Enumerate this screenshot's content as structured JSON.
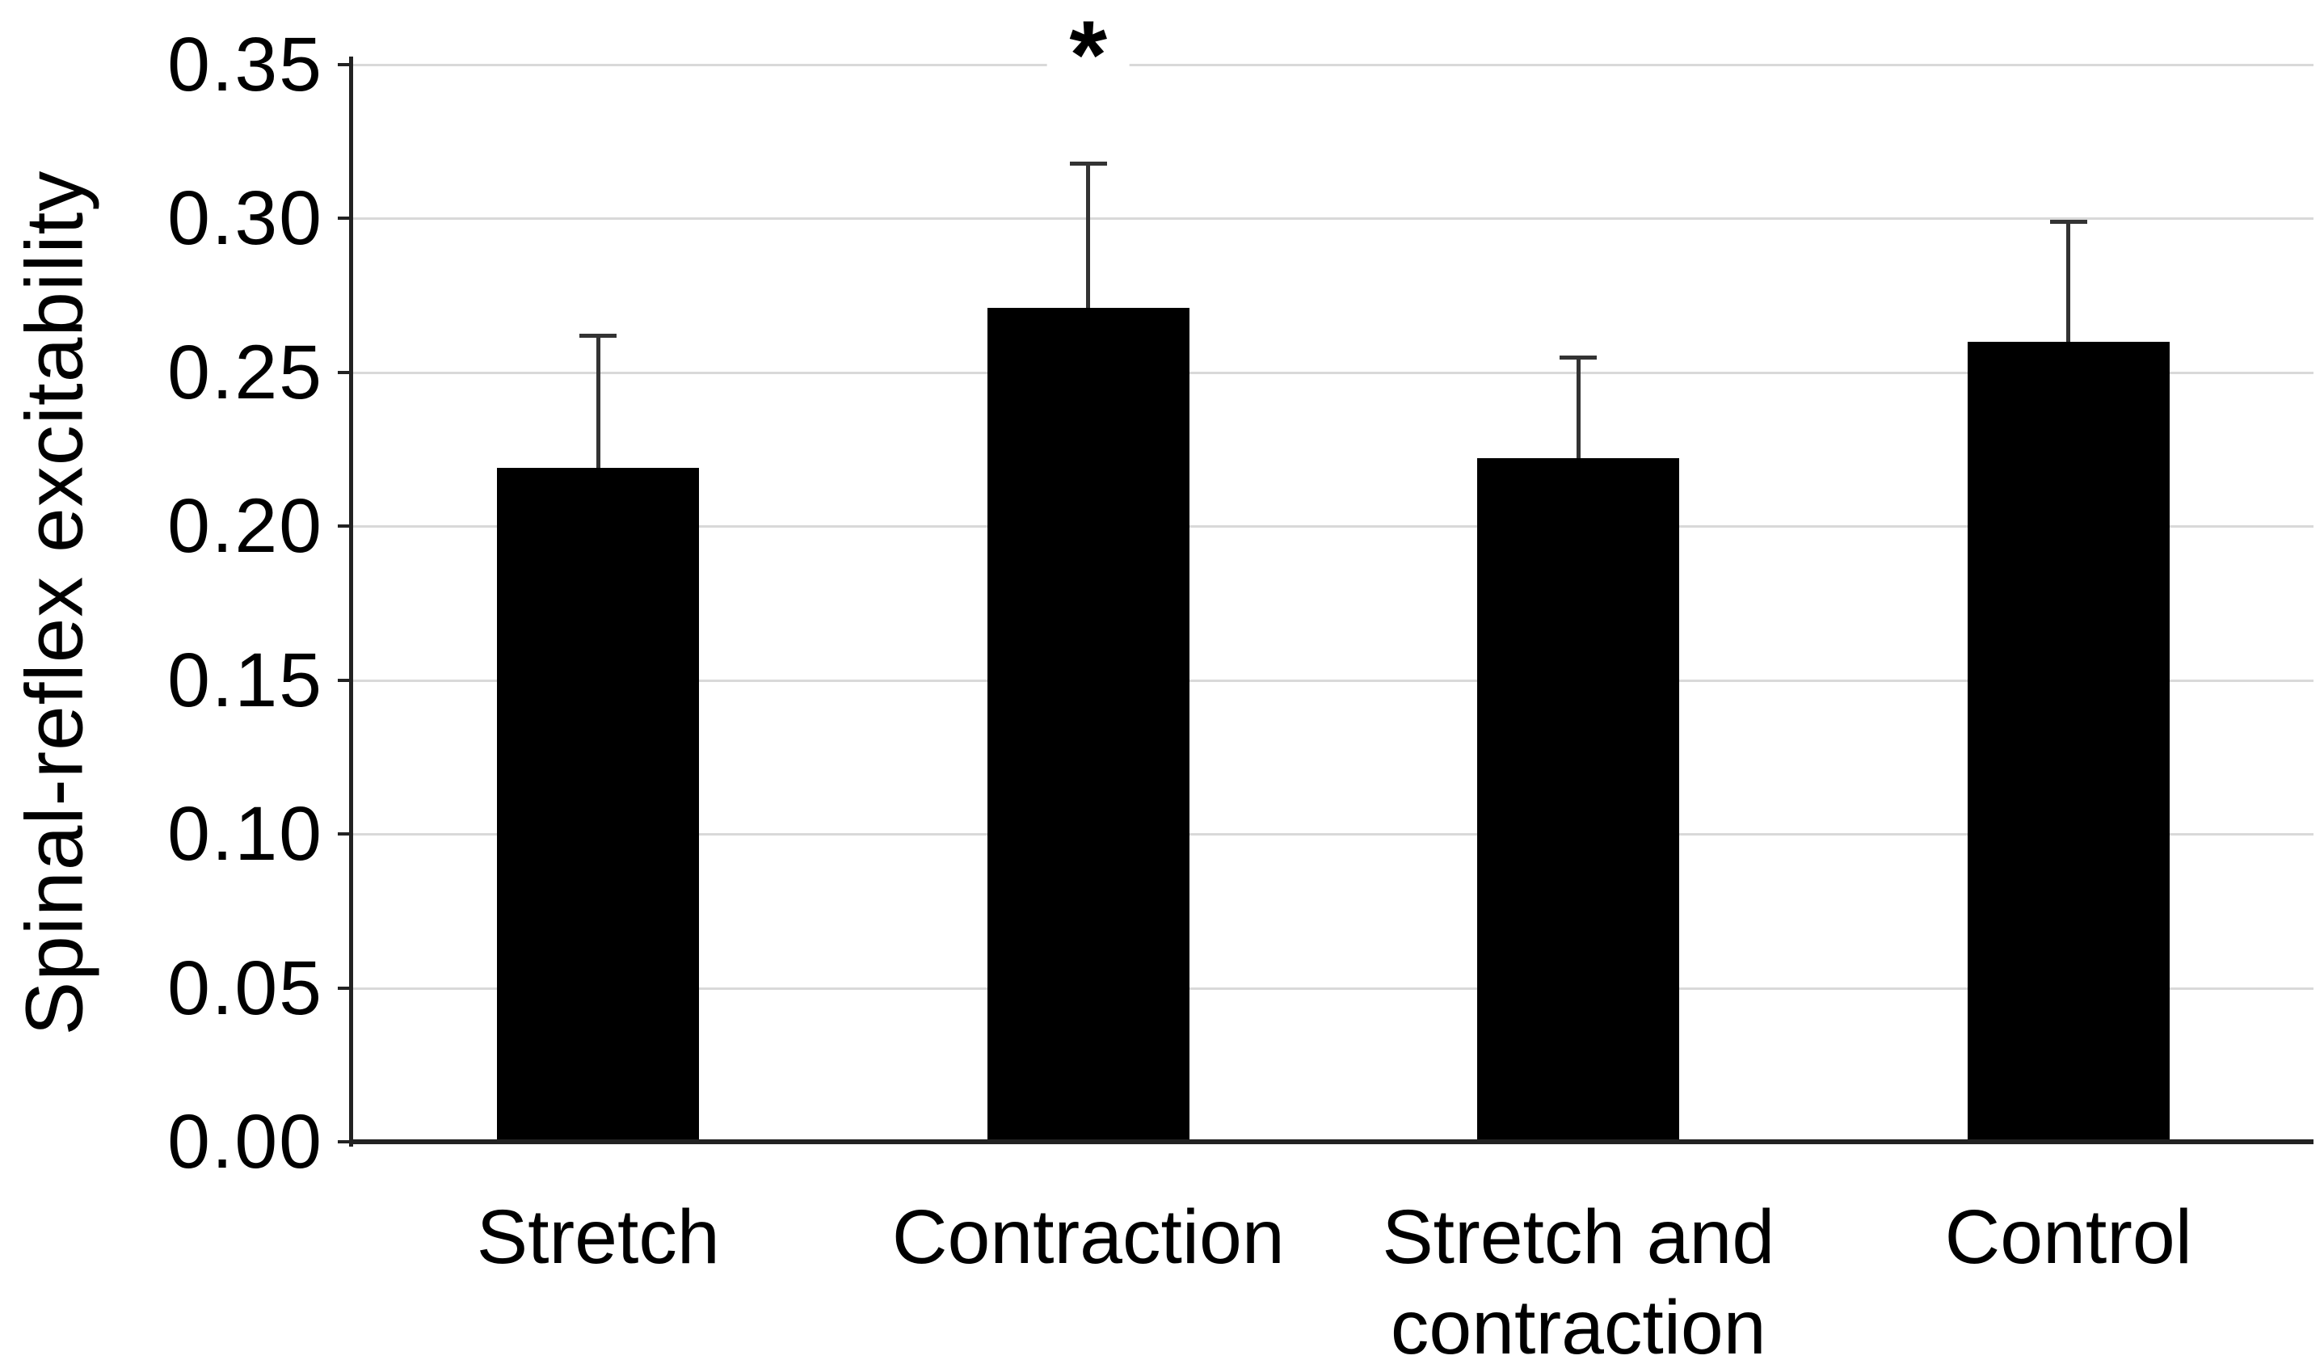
{
  "chart_data": {
    "type": "bar",
    "title": "",
    "xlabel": "",
    "ylabel": "Spinal-reflex excitability",
    "categories": [
      "Stretch",
      "Contraction",
      "Stretch and contraction",
      "Control"
    ],
    "category_lines": [
      [
        "Stretch"
      ],
      [
        "Contraction"
      ],
      [
        "Stretch and",
        "contraction"
      ],
      [
        "Control"
      ]
    ],
    "values": [
      0.219,
      0.271,
      0.222,
      0.26
    ],
    "errors_plus": [
      0.043,
      0.047,
      0.033,
      0.039
    ],
    "ylim": [
      0,
      0.35
    ],
    "ytick_labels": [
      "0.00",
      "0.05",
      "0.10",
      "0.15",
      "0.20",
      "0.25",
      "0.30",
      "0.35"
    ],
    "grid": true,
    "legend": "none",
    "annotations": [
      {
        "category_index": 1,
        "symbol": "*",
        "meaning": "significance-marker"
      }
    ],
    "colors": {
      "bar": "#000000",
      "gridline": "#d9d9d9",
      "axis": "#222222",
      "error_bar": "#333333",
      "text": "#000000",
      "background": "#ffffff"
    }
  }
}
